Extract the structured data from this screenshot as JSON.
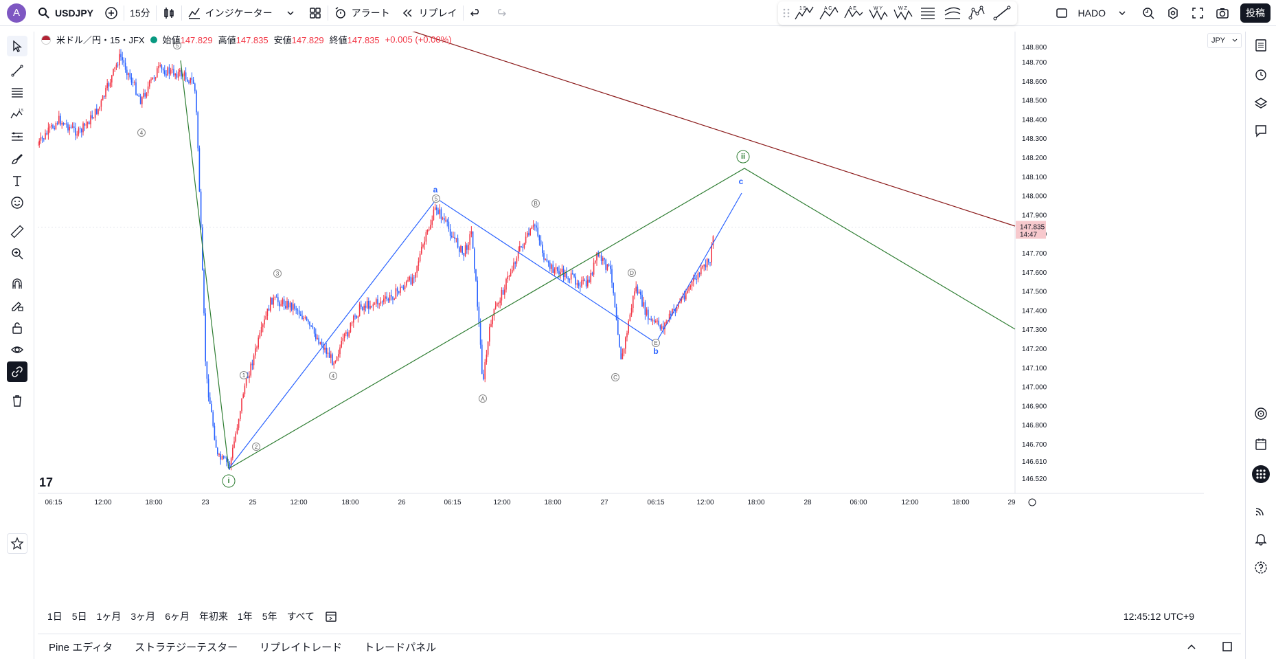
{
  "header": {
    "avatar_letter": "A",
    "symbol": "USDJPY",
    "interval": "15分",
    "indicators_label": "インジケーター",
    "alert_label": "アラート",
    "replay_label": "リプレイ",
    "layout_name": "HADO",
    "publish_label": "投稿"
  },
  "drawing_toolbar": {
    "tools": [
      "1 5",
      "A C",
      "A E",
      "W Y",
      "W Z"
    ]
  },
  "legend": {
    "title": "米ドル／円・15・JFX",
    "open_label": "始値",
    "open": "147.829",
    "high_label": "高値",
    "high": "147.835",
    "low_label": "安値",
    "low": "147.829",
    "close_label": "終値",
    "close": "147.835",
    "change": "+0.005 (+0.00%)"
  },
  "price_scale": {
    "currency": "JPY",
    "ticks": [
      "148.800",
      "148.700",
      "148.600",
      "148.500",
      "148.400",
      "148.300",
      "148.200",
      "148.100",
      "148.000",
      "147.900",
      "147.800",
      "147.700",
      "147.600",
      "147.500",
      "147.400",
      "147.300",
      "147.200",
      "147.100",
      "147.000",
      "146.900",
      "146.800",
      "146.700",
      "146.610",
      "146.520"
    ],
    "last_price": "147.835",
    "countdown": "14:47"
  },
  "time_axis": {
    "ticks": [
      "06:15",
      "12:00",
      "18:00",
      "23",
      "25",
      "12:00",
      "18:00",
      "26",
      "06:15",
      "12:00",
      "18:00",
      "27",
      "06:15",
      "12:00",
      "18:00",
      "28",
      "06:00",
      "12:00",
      "18:00",
      "29"
    ]
  },
  "wave_labels": {
    "minor": [
      "1",
      "2",
      "3",
      "4",
      "5",
      "4",
      "5"
    ],
    "abc": [
      "A",
      "B",
      "C",
      "D",
      "E"
    ],
    "blue": [
      "a",
      "b",
      "c"
    ],
    "green": [
      "i",
      "ii"
    ]
  },
  "range_bar": {
    "ranges": [
      "1日",
      "5日",
      "1ヶ月",
      "3ヶ月",
      "6ヶ月",
      "年初来",
      "1年",
      "5年",
      "すべて"
    ],
    "clock": "12:45:12 UTC+9"
  },
  "bottom_tabs": [
    "Pine エディタ",
    "ストラテジーテスター",
    "リプレイトレード",
    "トレードパネル"
  ],
  "colors": {
    "up": "#f23645",
    "down": "#2962ff",
    "green_line": "#2e7d32",
    "blue_line": "#2962ff",
    "red_line": "#8b1a1a"
  }
}
